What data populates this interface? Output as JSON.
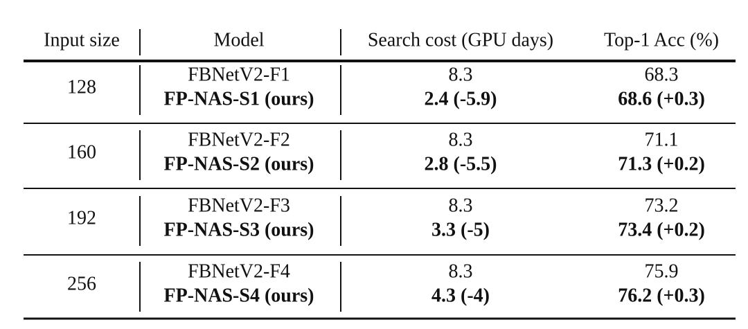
{
  "table": {
    "header": [
      "Input size",
      "Model",
      "Search cost (GPU days)",
      "Top-1 Acc (%)"
    ],
    "groups": [
      {
        "input_size": "128",
        "rows": [
          {
            "model": "FBNetV2-F1",
            "cost": "8.3",
            "acc": "68.3"
          },
          {
            "model": "FP-NAS-S1 (ours)",
            "cost": "2.4 (-5.9)",
            "acc": "68.6 (+0.3)"
          }
        ]
      },
      {
        "input_size": "160",
        "rows": [
          {
            "model": "FBNetV2-F2",
            "cost": "8.3",
            "acc": "71.1"
          },
          {
            "model": "FP-NAS-S2 (ours)",
            "cost": "2.8 (-5.5)",
            "acc": "71.3 (+0.2)"
          }
        ]
      },
      {
        "input_size": "192",
        "rows": [
          {
            "model": "FBNetV2-F3",
            "cost": "8.3",
            "acc": "73.2"
          },
          {
            "model": "FP-NAS-S3 (ours)",
            "cost": "3.3 (-5)",
            "acc": "73.4 (+0.2)"
          }
        ]
      },
      {
        "input_size": "256",
        "rows": [
          {
            "model": "FBNetV2-F4",
            "cost": "8.3",
            "acc": "75.9"
          },
          {
            "model": "FP-NAS-S4 (ours)",
            "cost": "4.3 (-4)",
            "acc": "76.2 (+0.3)"
          }
        ]
      }
    ]
  }
}
